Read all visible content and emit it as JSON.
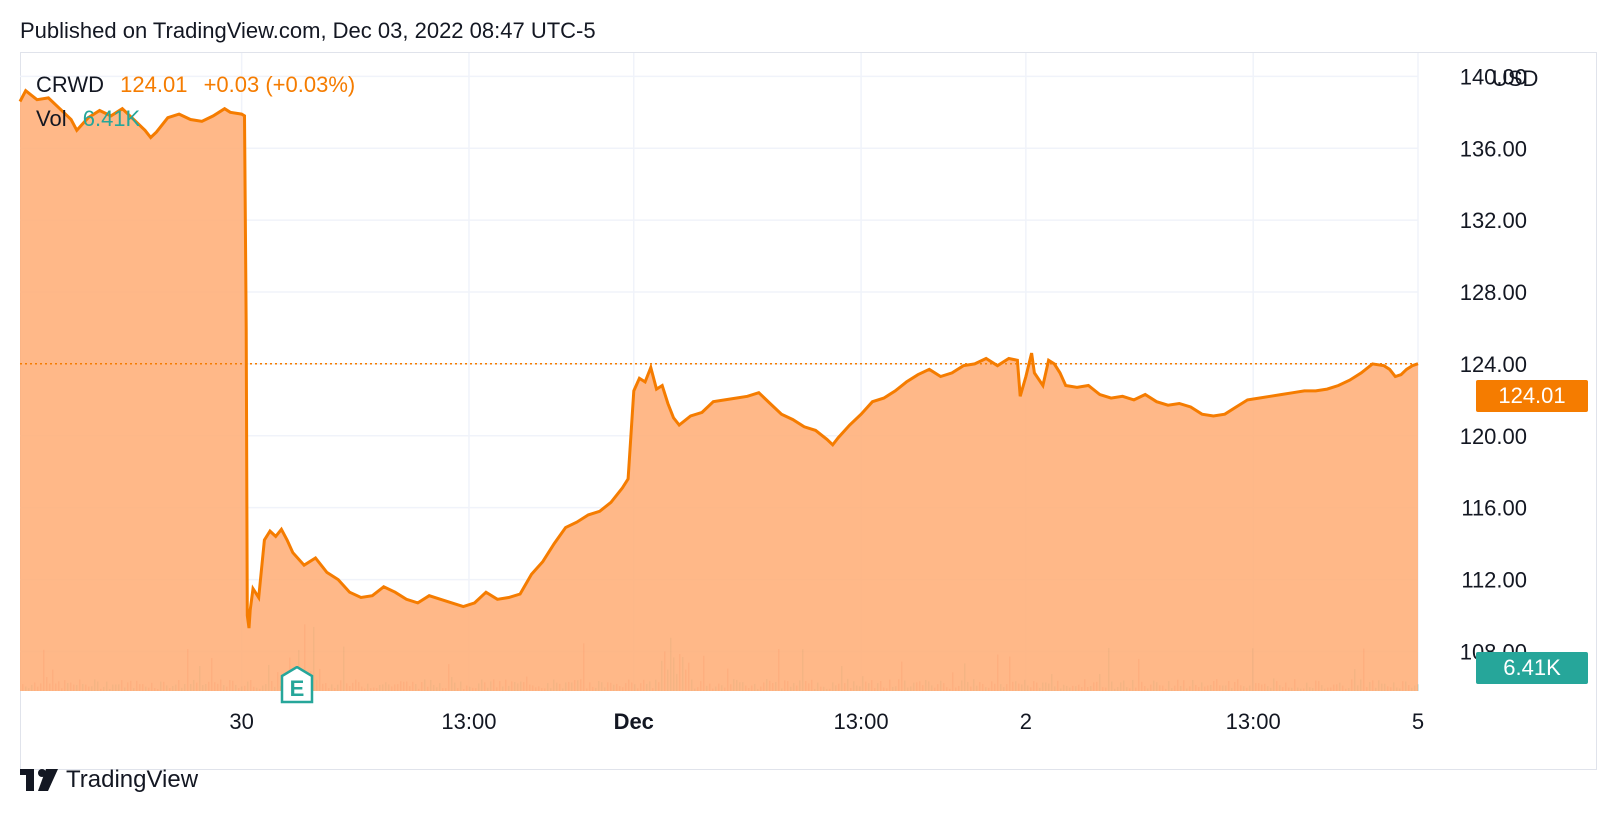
{
  "header": {
    "published": "Published on TradingView.com, Dec 03, 2022 08:47 UTC-5"
  },
  "legend": {
    "symbol": "CRWD",
    "last": "124.01",
    "change": "+0.03 (+0.03%)",
    "vol_label": "Vol",
    "vol_value": "6.41K"
  },
  "axis": {
    "currency": "USD"
  },
  "badges": {
    "last_price": "124.01",
    "last_volume": "6.41K"
  },
  "earnings_marker": {
    "label": "E"
  },
  "footer": {
    "brand": "TradingView"
  },
  "colors": {
    "price_line": "#f57c00",
    "area_fill": "#ffab73",
    "volume": "#26a69a",
    "grid": "#f0f3fa"
  },
  "chart_data": {
    "type": "area",
    "title": "",
    "xlabel": "",
    "ylabel": "USD",
    "ylim": [
      105.8,
      141.3
    ],
    "y_ticks": [
      "140.00",
      "136.00",
      "132.00",
      "128.00",
      "124.00",
      "120.00",
      "116.00",
      "112.00",
      "108.00"
    ],
    "x_ticks": [
      {
        "label": "30",
        "x": 1.6,
        "bold": false
      },
      {
        "label": "13:00",
        "x": 5.6,
        "bold": false
      },
      {
        "label": "Dec",
        "x": 8.5,
        "bold": true
      },
      {
        "label": "13:00",
        "x": 12.5,
        "bold": false
      },
      {
        "label": "2",
        "x": 15.4,
        "bold": false
      },
      {
        "label": "13:00",
        "x": 19.4,
        "bold": false
      },
      {
        "label": "5",
        "x": 22.3,
        "bold": false
      }
    ],
    "xlim": [
      -2.3,
      22.3
    ],
    "last_price": 124.01,
    "series": [
      {
        "name": "CRWD",
        "points": [
          [
            -2.3,
            138.6
          ],
          [
            -2.2,
            139.2
          ],
          [
            -2.0,
            138.7
          ],
          [
            -1.8,
            138.8
          ],
          [
            -1.6,
            138.2
          ],
          [
            -1.4,
            137.6
          ],
          [
            -1.3,
            137.0
          ],
          [
            -1.1,
            137.7
          ],
          [
            -0.9,
            138.1
          ],
          [
            -0.7,
            137.8
          ],
          [
            -0.5,
            138.2
          ],
          [
            -0.3,
            137.6
          ],
          [
            -0.1,
            137.0
          ],
          [
            0.0,
            136.6
          ],
          [
            0.1,
            136.9
          ],
          [
            0.3,
            137.7
          ],
          [
            0.5,
            137.9
          ],
          [
            0.7,
            137.6
          ],
          [
            0.9,
            137.5
          ],
          [
            1.1,
            137.8
          ],
          [
            1.3,
            138.2
          ],
          [
            1.4,
            138.0
          ],
          [
            1.6,
            137.9
          ],
          [
            1.65,
            137.8
          ],
          [
            1.68,
            126.0
          ],
          [
            1.7,
            110.0
          ],
          [
            1.73,
            109.3
          ],
          [
            1.75,
            110.3
          ],
          [
            1.8,
            111.5
          ],
          [
            1.9,
            111.0
          ],
          [
            2.0,
            114.2
          ],
          [
            2.1,
            114.7
          ],
          [
            2.2,
            114.4
          ],
          [
            2.3,
            114.8
          ],
          [
            2.4,
            114.2
          ],
          [
            2.5,
            113.5
          ],
          [
            2.7,
            112.8
          ],
          [
            2.9,
            113.2
          ],
          [
            3.1,
            112.4
          ],
          [
            3.3,
            112.0
          ],
          [
            3.5,
            111.3
          ],
          [
            3.7,
            111.0
          ],
          [
            3.9,
            111.1
          ],
          [
            4.1,
            111.6
          ],
          [
            4.3,
            111.3
          ],
          [
            4.5,
            110.9
          ],
          [
            4.7,
            110.7
          ],
          [
            4.9,
            111.1
          ],
          [
            5.1,
            110.9
          ],
          [
            5.3,
            110.7
          ],
          [
            5.5,
            110.5
          ],
          [
            5.7,
            110.7
          ],
          [
            5.9,
            111.3
          ],
          [
            6.1,
            110.9
          ],
          [
            6.3,
            111.0
          ],
          [
            6.5,
            111.2
          ],
          [
            6.7,
            112.3
          ],
          [
            6.9,
            113.0
          ],
          [
            7.1,
            114.0
          ],
          [
            7.3,
            114.9
          ],
          [
            7.5,
            115.2
          ],
          [
            7.7,
            115.6
          ],
          [
            7.9,
            115.8
          ],
          [
            8.1,
            116.3
          ],
          [
            8.3,
            117.1
          ],
          [
            8.4,
            117.6
          ],
          [
            8.45,
            120.0
          ],
          [
            8.5,
            122.5
          ],
          [
            8.6,
            123.2
          ],
          [
            8.7,
            123.0
          ],
          [
            8.8,
            123.8
          ],
          [
            8.9,
            122.6
          ],
          [
            9.0,
            122.8
          ],
          [
            9.1,
            121.8
          ],
          [
            9.2,
            121.0
          ],
          [
            9.3,
            120.6
          ],
          [
            9.5,
            121.1
          ],
          [
            9.7,
            121.3
          ],
          [
            9.9,
            121.9
          ],
          [
            10.1,
            122.0
          ],
          [
            10.3,
            122.1
          ],
          [
            10.5,
            122.2
          ],
          [
            10.7,
            122.4
          ],
          [
            10.9,
            121.8
          ],
          [
            11.1,
            121.2
          ],
          [
            11.3,
            120.9
          ],
          [
            11.5,
            120.5
          ],
          [
            11.7,
            120.3
          ],
          [
            11.9,
            119.8
          ],
          [
            12.0,
            119.5
          ],
          [
            12.1,
            119.9
          ],
          [
            12.3,
            120.6
          ],
          [
            12.5,
            121.2
          ],
          [
            12.7,
            121.9
          ],
          [
            12.9,
            122.1
          ],
          [
            13.1,
            122.5
          ],
          [
            13.3,
            123.0
          ],
          [
            13.5,
            123.4
          ],
          [
            13.7,
            123.7
          ],
          [
            13.9,
            123.3
          ],
          [
            14.1,
            123.5
          ],
          [
            14.3,
            123.9
          ],
          [
            14.5,
            124.0
          ],
          [
            14.7,
            124.3
          ],
          [
            14.9,
            123.9
          ],
          [
            15.1,
            124.3
          ],
          [
            15.25,
            124.2
          ],
          [
            15.3,
            122.2
          ],
          [
            15.4,
            123.3
          ],
          [
            15.5,
            124.6
          ],
          [
            15.55,
            123.5
          ],
          [
            15.7,
            122.8
          ],
          [
            15.8,
            124.2
          ],
          [
            15.9,
            124.0
          ],
          [
            16.0,
            123.5
          ],
          [
            16.1,
            122.8
          ],
          [
            16.3,
            122.7
          ],
          [
            16.5,
            122.8
          ],
          [
            16.7,
            122.3
          ],
          [
            16.9,
            122.1
          ],
          [
            17.1,
            122.2
          ],
          [
            17.3,
            122.0
          ],
          [
            17.5,
            122.3
          ],
          [
            17.7,
            121.9
          ],
          [
            17.9,
            121.7
          ],
          [
            18.1,
            121.8
          ],
          [
            18.3,
            121.6
          ],
          [
            18.5,
            121.2
          ],
          [
            18.7,
            121.1
          ],
          [
            18.9,
            121.2
          ],
          [
            19.1,
            121.6
          ],
          [
            19.3,
            122.0
          ],
          [
            19.5,
            122.1
          ],
          [
            19.7,
            122.2
          ],
          [
            19.9,
            122.3
          ],
          [
            20.1,
            122.4
          ],
          [
            20.3,
            122.5
          ],
          [
            20.5,
            122.5
          ],
          [
            20.7,
            122.6
          ],
          [
            20.9,
            122.8
          ],
          [
            21.1,
            123.1
          ],
          [
            21.3,
            123.5
          ],
          [
            21.5,
            124.0
          ],
          [
            21.7,
            123.9
          ],
          [
            21.8,
            123.7
          ],
          [
            21.9,
            123.3
          ],
          [
            22.0,
            123.4
          ],
          [
            22.1,
            123.7
          ],
          [
            22.2,
            123.9
          ],
          [
            22.3,
            124.01
          ]
        ]
      }
    ]
  }
}
